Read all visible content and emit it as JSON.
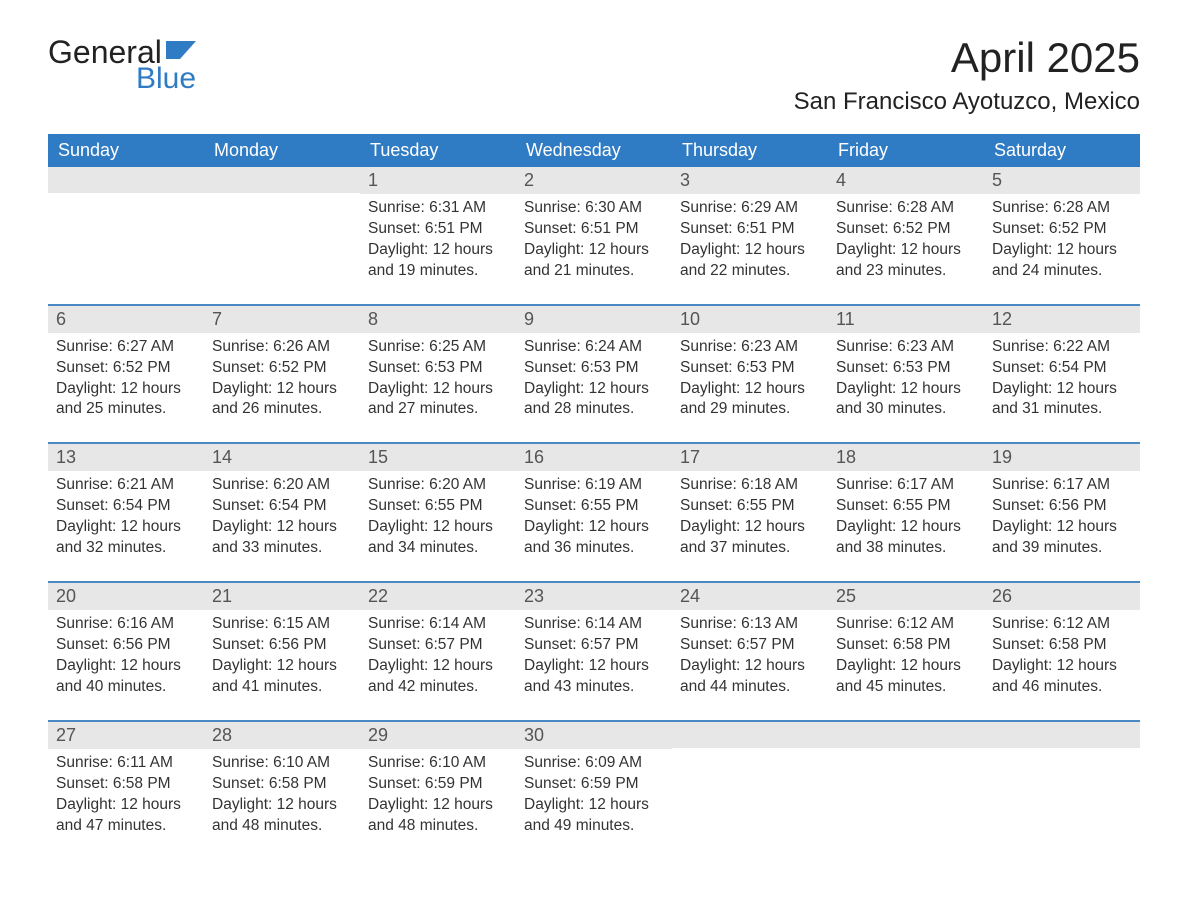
{
  "brand": {
    "word1": "General",
    "word2": "Blue"
  },
  "title": "April 2025",
  "location": "San Francisco Ayotuzco, Mexico",
  "colors": {
    "header_bg": "#2f7bc4",
    "header_text": "#ffffff",
    "stripe_bg": "#e7e7e7",
    "row_line": "#4b89c5",
    "page_bg": "#ffffff",
    "body_text": "#333333"
  },
  "day_headers": [
    "Sunday",
    "Monday",
    "Tuesday",
    "Wednesday",
    "Thursday",
    "Friday",
    "Saturday"
  ],
  "label_prefixes": {
    "sunrise": "Sunrise: ",
    "sunset": "Sunset: ",
    "daylight": "Daylight: "
  },
  "weeks": [
    [
      null,
      null,
      {
        "day": "1",
        "sunrise": "6:31 AM",
        "sunset": "6:51 PM",
        "daylight": "12 hours and 19 minutes."
      },
      {
        "day": "2",
        "sunrise": "6:30 AM",
        "sunset": "6:51 PM",
        "daylight": "12 hours and 21 minutes."
      },
      {
        "day": "3",
        "sunrise": "6:29 AM",
        "sunset": "6:51 PM",
        "daylight": "12 hours and 22 minutes."
      },
      {
        "day": "4",
        "sunrise": "6:28 AM",
        "sunset": "6:52 PM",
        "daylight": "12 hours and 23 minutes."
      },
      {
        "day": "5",
        "sunrise": "6:28 AM",
        "sunset": "6:52 PM",
        "daylight": "12 hours and 24 minutes."
      }
    ],
    [
      {
        "day": "6",
        "sunrise": "6:27 AM",
        "sunset": "6:52 PM",
        "daylight": "12 hours and 25 minutes."
      },
      {
        "day": "7",
        "sunrise": "6:26 AM",
        "sunset": "6:52 PM",
        "daylight": "12 hours and 26 minutes."
      },
      {
        "day": "8",
        "sunrise": "6:25 AM",
        "sunset": "6:53 PM",
        "daylight": "12 hours and 27 minutes."
      },
      {
        "day": "9",
        "sunrise": "6:24 AM",
        "sunset": "6:53 PM",
        "daylight": "12 hours and 28 minutes."
      },
      {
        "day": "10",
        "sunrise": "6:23 AM",
        "sunset": "6:53 PM",
        "daylight": "12 hours and 29 minutes."
      },
      {
        "day": "11",
        "sunrise": "6:23 AM",
        "sunset": "6:53 PM",
        "daylight": "12 hours and 30 minutes."
      },
      {
        "day": "12",
        "sunrise": "6:22 AM",
        "sunset": "6:54 PM",
        "daylight": "12 hours and 31 minutes."
      }
    ],
    [
      {
        "day": "13",
        "sunrise": "6:21 AM",
        "sunset": "6:54 PM",
        "daylight": "12 hours and 32 minutes."
      },
      {
        "day": "14",
        "sunrise": "6:20 AM",
        "sunset": "6:54 PM",
        "daylight": "12 hours and 33 minutes."
      },
      {
        "day": "15",
        "sunrise": "6:20 AM",
        "sunset": "6:55 PM",
        "daylight": "12 hours and 34 minutes."
      },
      {
        "day": "16",
        "sunrise": "6:19 AM",
        "sunset": "6:55 PM",
        "daylight": "12 hours and 36 minutes."
      },
      {
        "day": "17",
        "sunrise": "6:18 AM",
        "sunset": "6:55 PM",
        "daylight": "12 hours and 37 minutes."
      },
      {
        "day": "18",
        "sunrise": "6:17 AM",
        "sunset": "6:55 PM",
        "daylight": "12 hours and 38 minutes."
      },
      {
        "day": "19",
        "sunrise": "6:17 AM",
        "sunset": "6:56 PM",
        "daylight": "12 hours and 39 minutes."
      }
    ],
    [
      {
        "day": "20",
        "sunrise": "6:16 AM",
        "sunset": "6:56 PM",
        "daylight": "12 hours and 40 minutes."
      },
      {
        "day": "21",
        "sunrise": "6:15 AM",
        "sunset": "6:56 PM",
        "daylight": "12 hours and 41 minutes."
      },
      {
        "day": "22",
        "sunrise": "6:14 AM",
        "sunset": "6:57 PM",
        "daylight": "12 hours and 42 minutes."
      },
      {
        "day": "23",
        "sunrise": "6:14 AM",
        "sunset": "6:57 PM",
        "daylight": "12 hours and 43 minutes."
      },
      {
        "day": "24",
        "sunrise": "6:13 AM",
        "sunset": "6:57 PM",
        "daylight": "12 hours and 44 minutes."
      },
      {
        "day": "25",
        "sunrise": "6:12 AM",
        "sunset": "6:58 PM",
        "daylight": "12 hours and 45 minutes."
      },
      {
        "day": "26",
        "sunrise": "6:12 AM",
        "sunset": "6:58 PM",
        "daylight": "12 hours and 46 minutes."
      }
    ],
    [
      {
        "day": "27",
        "sunrise": "6:11 AM",
        "sunset": "6:58 PM",
        "daylight": "12 hours and 47 minutes."
      },
      {
        "day": "28",
        "sunrise": "6:10 AM",
        "sunset": "6:58 PM",
        "daylight": "12 hours and 48 minutes."
      },
      {
        "day": "29",
        "sunrise": "6:10 AM",
        "sunset": "6:59 PM",
        "daylight": "12 hours and 48 minutes."
      },
      {
        "day": "30",
        "sunrise": "6:09 AM",
        "sunset": "6:59 PM",
        "daylight": "12 hours and 49 minutes."
      },
      null,
      null,
      null
    ]
  ]
}
